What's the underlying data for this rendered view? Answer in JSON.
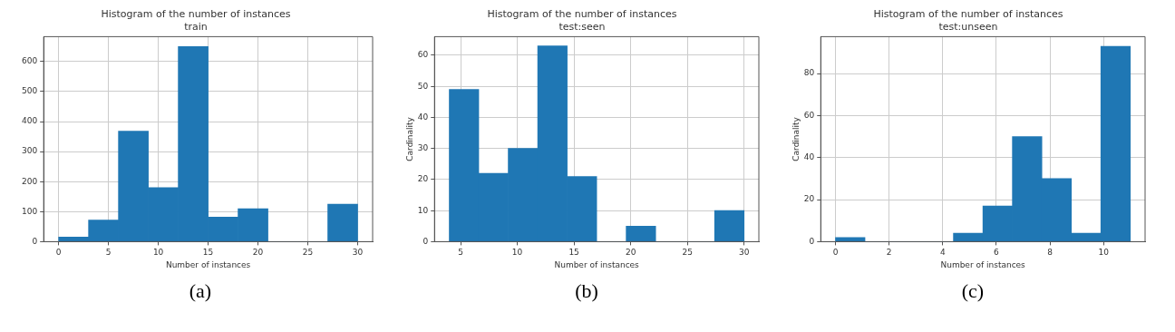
{
  "chart_data": [
    {
      "type": "histogram",
      "title": "Histogram of the number of instances",
      "subtitle": "train",
      "xlabel": "Number of instances",
      "bins": [
        0,
        3,
        6,
        9,
        12,
        15,
        18,
        21,
        24,
        27,
        30
      ],
      "values": [
        15,
        72,
        368,
        180,
        650,
        82,
        110,
        0,
        0,
        125
      ],
      "color": "#1f77b4",
      "xlim": [
        -1.5,
        31.5
      ],
      "xticks": [
        0,
        5,
        10,
        15,
        20,
        25,
        30
      ],
      "ylim": [
        0,
        683
      ],
      "yticks": [
        0,
        100,
        200,
        300,
        400,
        500,
        600
      ],
      "grid": true,
      "annotations": [
        "(a)"
      ]
    },
    {
      "type": "histogram",
      "title": "Histogram of the number of instances",
      "subtitle": "test:seen",
      "xlabel": "Number of instances",
      "ylabel": "Cardinality",
      "bins": [
        4,
        6.6,
        9.2,
        11.8,
        14.4,
        17,
        19.6,
        22.2,
        24.8,
        27.4,
        30
      ],
      "values": [
        49,
        22,
        30,
        63,
        21,
        0,
        5,
        0,
        0,
        10
      ],
      "color": "#1f77b4",
      "xlim": [
        2.7,
        31.3
      ],
      "xticks": [
        5,
        10,
        15,
        20,
        25,
        30
      ],
      "ylim": [
        0,
        66
      ],
      "yticks": [
        0,
        10,
        20,
        30,
        40,
        50,
        60
      ],
      "grid": true,
      "annotations": [
        "(b)"
      ]
    },
    {
      "type": "histogram",
      "title": "Histogram of the number of instances",
      "subtitle": "test:unseen",
      "xlabel": "Number of instances",
      "ylabel": "Cardinality",
      "bins": [
        0,
        1.1,
        2.2,
        3.3,
        4.4,
        5.5,
        6.6,
        7.7,
        8.8,
        9.9,
        11
      ],
      "values": [
        2,
        0,
        0,
        0,
        4,
        17,
        50,
        30,
        4,
        93
      ],
      "color": "#1f77b4",
      "xlim": [
        -0.55,
        11.55
      ],
      "xticks": [
        0,
        2,
        4,
        6,
        8,
        10
      ],
      "ylim": [
        0,
        97.6
      ],
      "yticks": [
        0,
        20,
        40,
        60,
        80
      ],
      "grid": true,
      "annotations": [
        "(c)"
      ]
    }
  ]
}
